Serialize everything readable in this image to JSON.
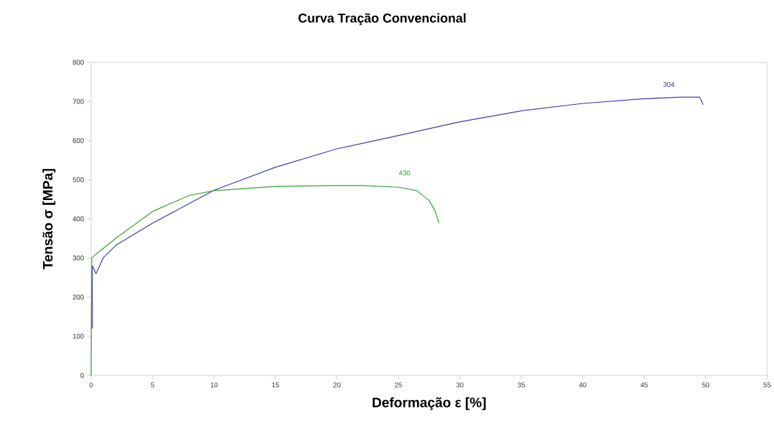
{
  "chart_data": {
    "type": "line",
    "title": "Curva  Tração Convencional",
    "xlabel": "Deformação ε [%]",
    "ylabel": "Tensão σ [MPa]",
    "xlim": [
      0,
      55
    ],
    "xticks": [
      0,
      5,
      10,
      15,
      20,
      25,
      30,
      35,
      40,
      45,
      50,
      55
    ],
    "ylim": [
      0,
      800
    ],
    "yticks": [
      0,
      100,
      200,
      300,
      400,
      500,
      600,
      700,
      800
    ],
    "grid": false,
    "legend": false,
    "marker": "none",
    "line_style": "solid",
    "series": [
      {
        "name": "304",
        "color": "#3636a6",
        "x": [
          0.1,
          0.1,
          0.4,
          1,
          2,
          5,
          10,
          15,
          20,
          25,
          30,
          35,
          40,
          45,
          48,
          49.5,
          49.8
        ],
        "values": [
          120,
          280,
          260,
          301,
          332,
          389,
          473,
          532,
          579,
          613,
          648,
          676,
          695,
          707,
          711,
          711,
          692
        ]
      },
      {
        "name": "430",
        "color": "#2e9e2e",
        "x": [
          0,
          0.05,
          0.4,
          2,
          5,
          8,
          10,
          15,
          20,
          22,
          25,
          26.5,
          27.5,
          28,
          28.3
        ],
        "values": [
          0,
          300,
          310,
          350,
          419,
          460,
          472,
          483,
          485,
          485,
          481,
          472,
          447,
          419,
          389
        ]
      }
    ]
  }
}
